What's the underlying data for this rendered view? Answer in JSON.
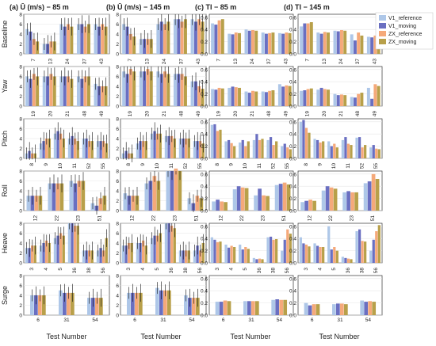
{
  "chart_data": {
    "type": "bar",
    "column_titles": [
      "(a)  Ū (m/s) − 85 m",
      "(b)  Ū (m/s) − 145 m",
      "(c)  TI − 85 m",
      "(d)  TI − 145 m"
    ],
    "row_labels": [
      "Baseline",
      "Yaw",
      "Pitch",
      "Roll",
      "Heave",
      "Surge"
    ],
    "xlabel": "Test Number",
    "legend": {
      "position": "top-right",
      "entries": [
        "V1_reference",
        "V1_moving",
        "ZX_reference",
        "ZX_moving"
      ]
    },
    "series_colors": [
      "#aec7e8",
      "#6a6fc1",
      "#f5a97a",
      "#b8a04a"
    ],
    "u_ticks": [
      0,
      2,
      4,
      6,
      8
    ],
    "u_ylim": [
      0,
      8
    ],
    "ti_ticks": [
      0.0,
      0.2,
      0.4,
      0.6
    ],
    "ti_ylim": [
      0,
      0.65
    ],
    "rows": [
      {
        "name": "Baseline",
        "tests": [
          "7",
          "13",
          "24",
          "37",
          "43"
        ],
        "u85": [
          [
            5,
            4.5,
            3,
            2.5
          ],
          [
            2,
            2,
            2.5,
            2.5
          ],
          [
            6,
            5.5,
            6,
            5.5
          ],
          [
            6,
            6,
            5.5,
            6
          ],
          [
            6,
            5.5,
            6,
            5.5
          ]
        ],
        "u145": [
          [
            6,
            5.5,
            4,
            3.5
          ],
          [
            3,
            3,
            3,
            3
          ],
          [
            6,
            6.5,
            6,
            6.5
          ],
          [
            7,
            7,
            6.5,
            7
          ],
          [
            7,
            6.5,
            7,
            6.5
          ]
        ],
        "ti85": [
          [
            0.5,
            0.48,
            0.55,
            0.57
          ],
          [
            0.33,
            0.32,
            0.35,
            0.34
          ],
          [
            0.4,
            0.38,
            0.39,
            0.38
          ],
          [
            0.35,
            0.33,
            0.34,
            0.35
          ],
          [
            0.34,
            0.33,
            0.35,
            0.34
          ]
        ],
        "ti145": [
          [
            0.45,
            0.5,
            0.5,
            0.52
          ],
          [
            0.35,
            0.33,
            0.36,
            0.35
          ],
          [
            0.38,
            0.37,
            0.39,
            0.38
          ],
          [
            0.32,
            0.22,
            0.35,
            0.3
          ],
          [
            0.28,
            0.27,
            0.3,
            0.29
          ]
        ]
      },
      {
        "name": "Yaw",
        "tests": [
          "19",
          "20",
          "21",
          "48",
          "49"
        ],
        "u85": [
          [
            6,
            5.5,
            6.5,
            6
          ],
          [
            6,
            6,
            6.5,
            6
          ],
          [
            6,
            6,
            6,
            5.5
          ],
          [
            6,
            5.5,
            6,
            6
          ],
          [
            4.5,
            4,
            4,
            4
          ]
        ],
        "u145": [
          [
            7,
            6.5,
            7.5,
            7
          ],
          [
            7,
            7,
            7.5,
            7
          ],
          [
            7,
            6.5,
            7,
            6.5
          ],
          [
            6.5,
            6.5,
            6.5,
            6
          ],
          [
            5,
            5,
            4,
            3.5
          ]
        ],
        "ti85": [
          [
            0.28,
            0.27,
            0.3,
            0.29
          ],
          [
            0.3,
            0.32,
            0.31,
            0.3
          ],
          [
            0.24,
            0.22,
            0.25,
            0.24
          ],
          [
            0.24,
            0.23,
            0.25,
            0.26
          ],
          [
            0.36,
            0.32,
            0.34,
            0.33
          ]
        ],
        "ti145": [
          [
            0.25,
            0.26,
            0.28,
            0.29
          ],
          [
            0.27,
            0.3,
            0.28,
            0.27
          ],
          [
            0.2,
            0.18,
            0.19,
            0.18
          ],
          [
            0.15,
            0.14,
            0.2,
            0.22
          ],
          [
            0.3,
            0.12,
            0.36,
            0.33
          ]
        ]
      },
      {
        "name": "Pitch",
        "tests": [
          "8",
          "9",
          "10",
          "11",
          "52",
          "55"
        ],
        "u85": [
          [
            1,
            1.5,
            1,
            1
          ],
          [
            3,
            3.5,
            4,
            4
          ],
          [
            5,
            5.5,
            5,
            4
          ],
          [
            4,
            4.5,
            4,
            3.5
          ],
          [
            4,
            4,
            3.5,
            3.5
          ],
          [
            3.5,
            3.5,
            3.5,
            3
          ]
        ],
        "u145": [
          [
            1,
            1.5,
            1,
            1
          ],
          [
            3,
            3.5,
            3.5,
            3.5
          ],
          [
            5,
            5.5,
            5,
            5
          ],
          [
            4.5,
            4.5,
            4.5,
            4
          ],
          [
            4,
            4,
            4,
            4
          ],
          [
            3.5,
            3.5,
            3.5,
            3
          ]
        ],
        "ti85": [
          [
            0.55,
            0.56,
            0.45,
            0.47
          ],
          [
            0.28,
            0.3,
            0.25,
            0.2
          ],
          [
            0.26,
            0.3,
            0.2,
            0.28
          ],
          [
            0.3,
            0.4,
            0.3,
            0.32
          ],
          [
            0.3,
            0.35,
            0.22,
            0.28
          ],
          [
            0.2,
            0.24,
            0.18,
            0.15
          ]
        ],
        "ti145": [
          [
            0.6,
            0.63,
            0.5,
            0.42
          ],
          [
            0.32,
            0.3,
            0.26,
            0.28
          ],
          [
            0.28,
            0.2,
            0.24,
            0.18
          ],
          [
            0.3,
            0.35,
            0.24,
            0.22
          ],
          [
            0.34,
            0.35,
            0.18,
            0.22
          ],
          [
            0.18,
            0.22,
            0.16,
            0.15
          ]
        ]
      },
      {
        "name": "Roll",
        "tests": [
          "12",
          "22",
          "23",
          "51"
        ],
        "u85": [
          [
            3,
            3,
            3,
            3
          ],
          [
            5.5,
            5.5,
            5.5,
            5.5
          ],
          [
            6,
            5.5,
            6,
            6
          ],
          [
            1.5,
            1,
            2.5,
            3
          ]
        ],
        "u145": [
          [
            3.5,
            3,
            3,
            3
          ],
          [
            5.5,
            6,
            7,
            6
          ],
          [
            8,
            8,
            8.5,
            8
          ],
          [
            2.5,
            1.5,
            3,
            2.5
          ]
        ],
        "ti85": [
          [
            0.15,
            0.18,
            0.15,
            0.14
          ],
          [
            0.35,
            0.4,
            0.38,
            0.37
          ],
          [
            0.25,
            0.36,
            0.25,
            0.24
          ],
          [
            0.42,
            0.44,
            0.46,
            0.43
          ]
        ],
        "ti145": [
          [
            0.14,
            0.16,
            0.18,
            0.16
          ],
          [
            0.33,
            0.4,
            0.38,
            0.36
          ],
          [
            0.3,
            0.32,
            0.3,
            0.3
          ],
          [
            0.45,
            0.48,
            0.6,
            0.52
          ]
        ]
      },
      {
        "name": "Heave",
        "tests": [
          "3",
          "4",
          "5",
          "36",
          "38",
          "56"
        ],
        "u85": [
          [
            3,
            3,
            3.5,
            3.5
          ],
          [
            3.5,
            4,
            4.5,
            4
          ],
          [
            5,
            5.5,
            6,
            5.5
          ],
          [
            8,
            8,
            7.5,
            7.5
          ],
          [
            2.5,
            2.5,
            2.5,
            2.5
          ],
          [
            2.5,
            3,
            2.5,
            5
          ]
        ],
        "u145": [
          [
            3.5,
            3.5,
            4,
            4
          ],
          [
            4,
            4,
            4.5,
            3.5
          ],
          [
            5,
            5.5,
            5.5,
            6
          ],
          [
            8,
            8,
            7.5,
            7
          ],
          [
            2.5,
            2.5,
            2.5,
            2.5
          ],
          [
            2.5,
            3.5,
            2.5,
            4
          ]
        ],
        "ti85": [
          [
            0.42,
            0.38,
            0.34,
            0.35
          ],
          [
            0.3,
            0.25,
            0.28,
            0.26
          ],
          [
            0.3,
            0.22,
            0.26,
            0.23
          ],
          [
            0.08,
            0.06,
            0.07,
            0.06
          ],
          [
            0.42,
            0.43,
            0.38,
            0.39
          ],
          [
            0.2,
            0.38,
            0.55,
            0.48
          ]
        ],
        "ti145": [
          [
            0.42,
            0.32,
            0.3,
            0.27
          ],
          [
            0.32,
            0.28,
            0.26,
            0.26
          ],
          [
            0.6,
            0.22,
            0.26,
            0.2
          ],
          [
            0.1,
            0.08,
            0.07,
            0.06
          ],
          [
            0.52,
            0.55,
            0.36,
            0.35
          ],
          [
            0.2,
            0.38,
            0.52,
            0.62
          ]
        ]
      },
      {
        "name": "Surge",
        "tests": [
          "6",
          "31",
          "54"
        ],
        "u85": [
          [
            4,
            4,
            4,
            4
          ],
          [
            5,
            4.5,
            4.5,
            4.5
          ],
          [
            3.5,
            3.5,
            3.5,
            3.5
          ]
        ],
        "u145": [
          [
            4.5,
            4.5,
            4.5,
            4.5
          ],
          [
            5.5,
            5,
            5,
            5
          ],
          [
            4,
            3.5,
            3.5,
            3.5
          ]
        ],
        "ti85": [
          [
            0.22,
            0.22,
            0.24,
            0.23
          ],
          [
            0.23,
            0.23,
            0.23,
            0.23
          ],
          [
            0.25,
            0.26,
            0.25,
            0.25
          ]
        ],
        "ti145": [
          [
            0.2,
            0.16,
            0.18,
            0.18
          ],
          [
            0.18,
            0.19,
            0.19,
            0.18
          ],
          [
            0.24,
            0.22,
            0.23,
            0.22
          ]
        ]
      }
    ]
  }
}
